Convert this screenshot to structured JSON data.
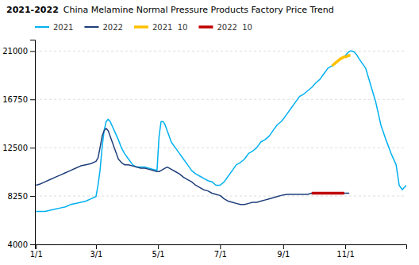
{
  "chart_data": {
    "type": "line",
    "title": "2021-2022",
    "subtitle": "China Melamine Normal Pressure Products Factory Price Trend",
    "xlim": [
      0,
      365
    ],
    "xticks": [
      {
        "value": 1,
        "label": "1/1"
      },
      {
        "value": 60,
        "label": "3/1"
      },
      {
        "value": 121,
        "label": "5/1"
      },
      {
        "value": 182,
        "label": "7/1"
      },
      {
        "value": 244,
        "label": "9/1"
      },
      {
        "value": 305,
        "label": "11/1"
      }
    ],
    "ylim": [
      4000,
      22000
    ],
    "yticks": [
      4000,
      8250,
      12500,
      16750,
      21000
    ],
    "grid": "y",
    "legend": "upper left",
    "series": [
      {
        "name": "2021",
        "color": "#00b0f0",
        "x": [
          1,
          5,
          10,
          15,
          20,
          25,
          30,
          35,
          40,
          45,
          50,
          55,
          60,
          62,
          64,
          66,
          68,
          70,
          72,
          74,
          76,
          78,
          80,
          82,
          85,
          88,
          92,
          96,
          100,
          104,
          108,
          112,
          116,
          120,
          122,
          124,
          126,
          128,
          130,
          132,
          134,
          138,
          142,
          146,
          150,
          154,
          158,
          162,
          166,
          170,
          174,
          178,
          182,
          186,
          190,
          194,
          198,
          202,
          206,
          210,
          214,
          218,
          222,
          226,
          230,
          234,
          238,
          242,
          244,
          248,
          252,
          256,
          260,
          264,
          268,
          272,
          276,
          280,
          284,
          288,
          292,
          296,
          300,
          304,
          306,
          308,
          310,
          312,
          314,
          316,
          318,
          321,
          325,
          330,
          335,
          340,
          345,
          350,
          355,
          358,
          361,
          363,
          365
        ],
        "values": [
          6900,
          6900,
          6900,
          7000,
          7100,
          7200,
          7300,
          7500,
          7600,
          7700,
          7800,
          8000,
          8200,
          9200,
          10500,
          12500,
          14000,
          14800,
          15000,
          14800,
          14400,
          14000,
          13600,
          13200,
          12500,
          12000,
          11500,
          11000,
          10800,
          10800,
          10800,
          10700,
          10600,
          10500,
          13500,
          14800,
          14800,
          14500,
          14000,
          13500,
          13000,
          12500,
          12000,
          11500,
          11000,
          10500,
          10200,
          10000,
          9800,
          9600,
          9500,
          9200,
          9200,
          9500,
          10000,
          10500,
          11000,
          11200,
          11500,
          12000,
          12200,
          12500,
          13000,
          13200,
          13500,
          14000,
          14500,
          14800,
          15000,
          15500,
          16000,
          16500,
          17000,
          17200,
          17500,
          17800,
          18200,
          18500,
          19000,
          19500,
          19700,
          20000,
          20300,
          20500,
          20700,
          20900,
          21000,
          21000,
          20900,
          20700,
          20400,
          20000,
          19500,
          18000,
          16500,
          14500,
          13200,
          12000,
          11000,
          9200,
          8800,
          9000,
          9200
        ]
      },
      {
        "name": "2022",
        "color": "#1f3f7a",
        "x": [
          1,
          5,
          10,
          15,
          20,
          25,
          30,
          35,
          40,
          45,
          50,
          55,
          60,
          62,
          64,
          66,
          68,
          70,
          72,
          74,
          76,
          78,
          80,
          82,
          85,
          88,
          92,
          96,
          100,
          104,
          108,
          112,
          116,
          120,
          122,
          124,
          126,
          128,
          130,
          132,
          134,
          138,
          142,
          146,
          150,
          154,
          158,
          162,
          166,
          170,
          174,
          178,
          182,
          186,
          190,
          194,
          198,
          202,
          206,
          210,
          214,
          218,
          222,
          226,
          230,
          234,
          238,
          242,
          244,
          248,
          252,
          256,
          260,
          264,
          268,
          272,
          276,
          280,
          284,
          288,
          292,
          296,
          300,
          304,
          308,
          309
        ],
        "values": [
          9200,
          9300,
          9500,
          9700,
          9900,
          10100,
          10300,
          10500,
          10700,
          10900,
          11000,
          11100,
          11300,
          11600,
          12500,
          13500,
          14000,
          14200,
          14000,
          13500,
          13000,
          12500,
          12000,
          11500,
          11200,
          11000,
          11000,
          10900,
          10800,
          10700,
          10700,
          10600,
          10500,
          10400,
          10400,
          10500,
          10600,
          10700,
          10800,
          10700,
          10600,
          10400,
          10200,
          9900,
          9700,
          9500,
          9200,
          9000,
          8800,
          8700,
          8500,
          8400,
          8300,
          8000,
          7800,
          7700,
          7600,
          7500,
          7500,
          7600,
          7700,
          7700,
          7800,
          7900,
          8000,
          8100,
          8200,
          8300,
          8350,
          8400,
          8400,
          8400,
          8400,
          8400,
          8400,
          8500,
          8500,
          8500,
          8500,
          8500,
          8500,
          8500,
          8500,
          8500,
          8500,
          8500
        ]
      },
      {
        "name": "2021  10",
        "color": "#ffc000",
        "x": [
          292,
          296,
          300,
          304,
          306,
          308,
          310
        ],
        "values": [
          19700,
          20000,
          20300,
          20500,
          20500,
          20600,
          20600
        ]
      },
      {
        "name": "2022  10",
        "color": "#c00000",
        "x": [
          272,
          276,
          280,
          284,
          288,
          292,
          296,
          300,
          304
        ],
        "values": [
          8500,
          8500,
          8500,
          8500,
          8500,
          8500,
          8500,
          8500,
          8500
        ]
      }
    ]
  }
}
